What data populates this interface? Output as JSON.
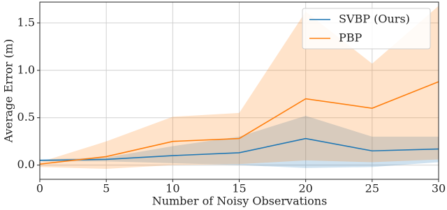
{
  "chart_data": {
    "type": "line",
    "x_label": "Number of Noisy Observations",
    "y_label": "Average Error (m)",
    "x": [
      0,
      5,
      10,
      15,
      20,
      25,
      30
    ],
    "series": [
      {
        "name": "SVBP (Ours)",
        "color": "#1f77b4",
        "values": [
          0.05,
          0.06,
          0.1,
          0.13,
          0.28,
          0.15,
          0.17
        ],
        "lower": [
          0.04,
          0.04,
          0.02,
          0.0,
          -0.03,
          -0.02,
          0.03
        ],
        "upper": [
          0.06,
          0.08,
          0.2,
          0.3,
          0.52,
          0.3,
          0.3
        ]
      },
      {
        "name": "PBP",
        "color": "#ff7f0e",
        "values": [
          0.01,
          0.09,
          0.25,
          0.28,
          0.7,
          0.6,
          0.88
        ],
        "lower": [
          -0.02,
          -0.04,
          0.0,
          0.01,
          0.05,
          0.03,
          0.06
        ],
        "upper": [
          0.03,
          0.25,
          0.51,
          0.55,
          1.62,
          1.07,
          1.68
        ]
      }
    ],
    "xlim": [
      0,
      30
    ],
    "xticks": [
      0,
      5,
      10,
      15,
      20,
      25,
      30
    ],
    "ylim": [
      -0.15,
      1.72
    ],
    "yticks": [
      {
        "value": 0,
        "label": "0.0"
      },
      {
        "value": 0.5,
        "label": "0.5"
      },
      {
        "value": 1,
        "label": "1.0"
      },
      {
        "value": 1.5,
        "label": "1.5"
      }
    ],
    "grid": true,
    "legend": "upper right"
  }
}
